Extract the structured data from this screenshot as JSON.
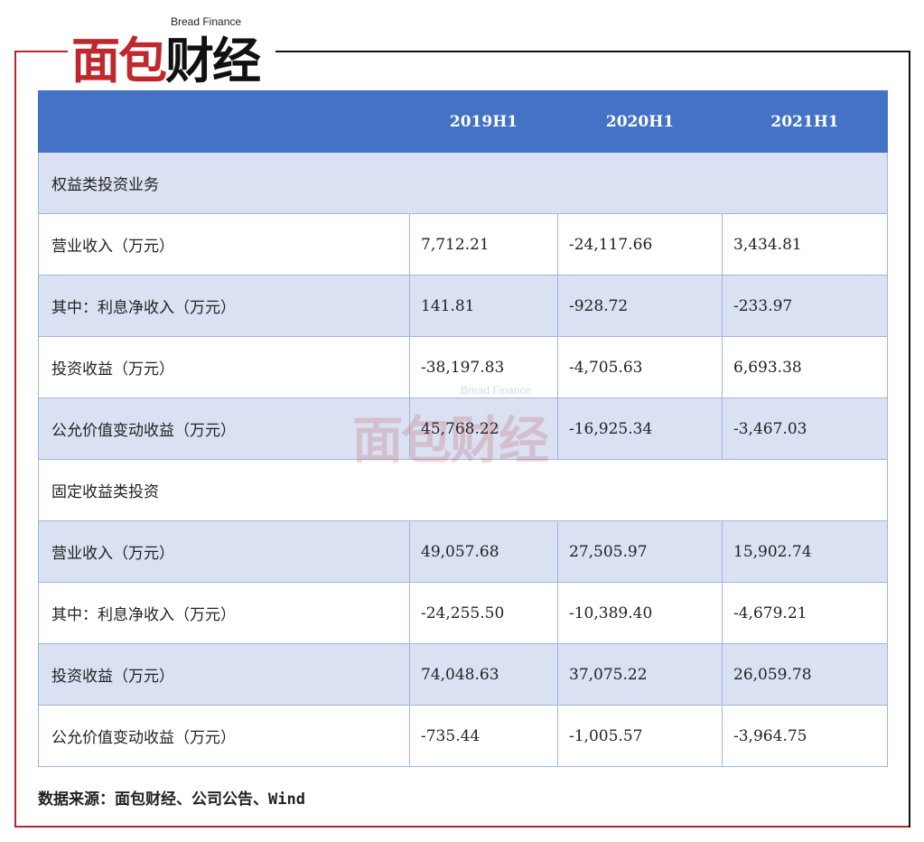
{
  "logo": {
    "subtitle": "Bread Finance",
    "text_red": "面包",
    "text_black": "财经"
  },
  "table": {
    "header": [
      "",
      "2019H1",
      "2020H1",
      "2021H1"
    ],
    "sections": [
      {
        "title": "权益类投资业务",
        "rows": [
          [
            "营业收入（万元）",
            "7,712.21",
            "-24,117.66",
            "3,434.81"
          ],
          [
            "其中：利息净收入（万元）",
            "141.81",
            "-928.72",
            "-233.97"
          ],
          [
            "投资收益（万元）",
            "-38,197.83",
            "-4,705.63",
            "6,693.38"
          ],
          [
            "公允价值变动收益（万元）",
            "45,768.22",
            "-16,925.34",
            "-3,467.03"
          ]
        ]
      },
      {
        "title": "固定收益类投资",
        "rows": [
          [
            "营业收入（万元）",
            "49,057.68",
            "27,505.97",
            "15,902.74"
          ],
          [
            "其中：利息净收入（万元）",
            "-24,255.50",
            "-10,389.40",
            "-4,679.21"
          ],
          [
            "投资收益（万元）",
            "74,048.63",
            "37,075.22",
            "26,059.78"
          ],
          [
            "公允价值变动收益（万元）",
            "-735.44",
            "-1,005.57",
            "-3,964.75"
          ]
        ]
      }
    ]
  },
  "source": "数据来源：面包财经、公司公告、Wind",
  "watermark": {
    "text": "面包财经",
    "subtitle": "Bread Finance"
  }
}
